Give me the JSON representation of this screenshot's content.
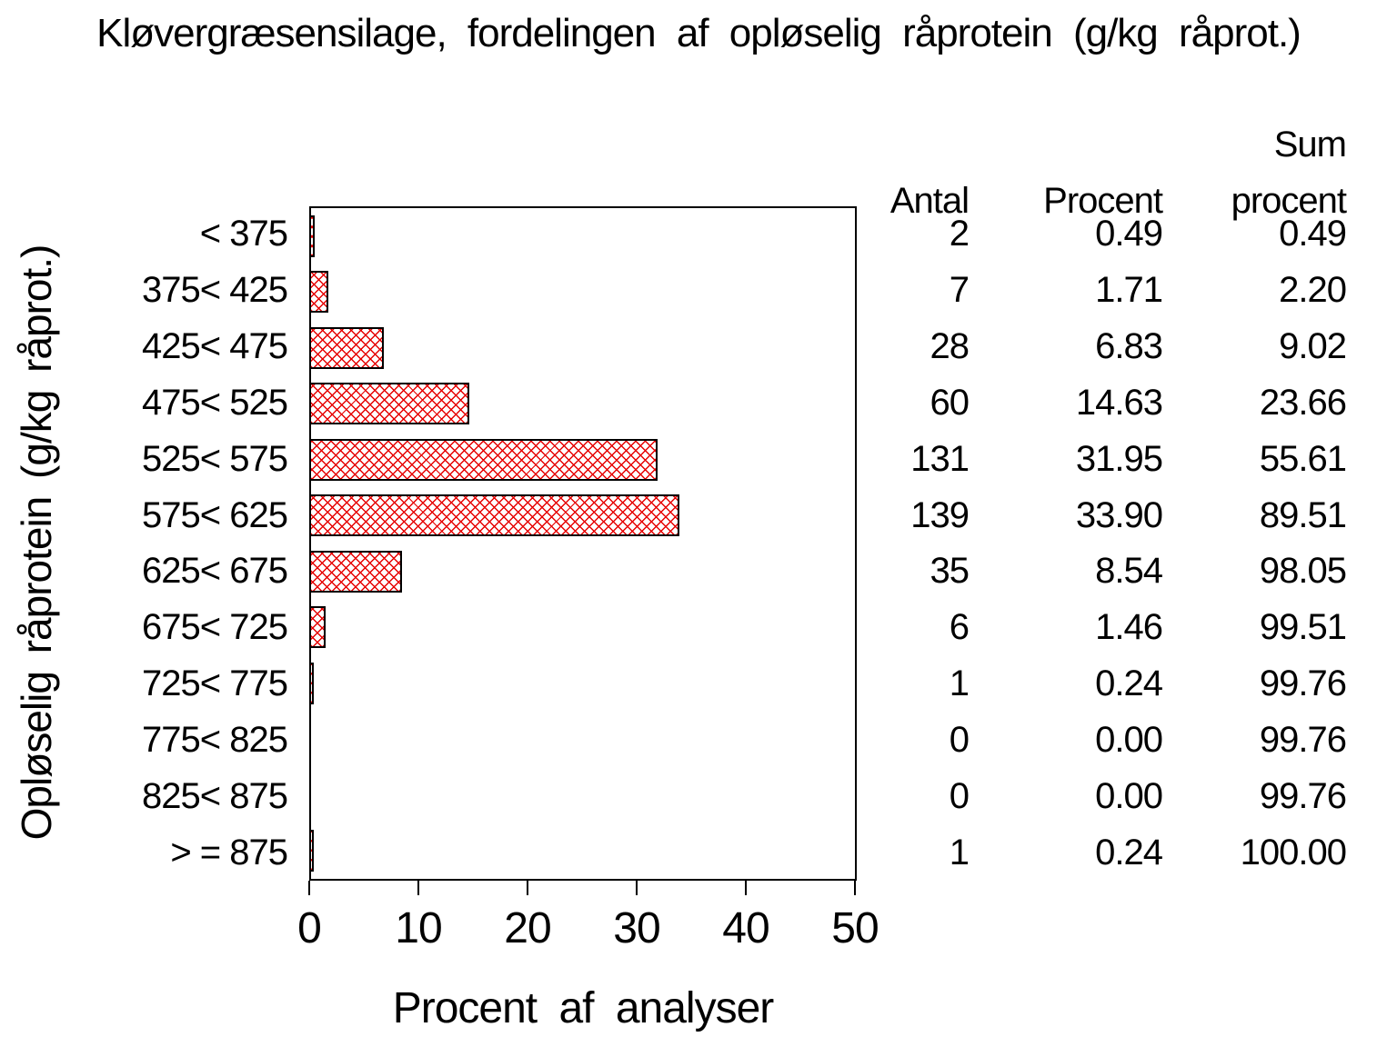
{
  "title": "Kløvergræsensilage, fordelingen af opløselig råprotein (g/kg råprot.)",
  "chart_data": {
    "type": "bar",
    "orientation": "horizontal",
    "title": "Kløvergræsensilage, fordelingen af opløselig råprotein (g/kg råprot.)",
    "xlabel": "Procent af analyser",
    "ylabel": "Opløselig råprotein (g/kg råprot.)",
    "xlim": [
      0,
      50
    ],
    "xticks": [
      "0",
      "10",
      "20",
      "30",
      "40",
      "50"
    ],
    "grid": "off",
    "bar_fill": "red crosshatch on white",
    "bar_color": "#e60000",
    "bar_border_color": "#000000",
    "categories": [
      "< 375",
      "375< 425",
      "425< 475",
      "475< 525",
      "525< 575",
      "575< 625",
      "625< 675",
      "675< 725",
      "725< 775",
      "775< 825",
      "825< 875",
      "> = 875"
    ],
    "values": [
      0.49,
      1.71,
      6.83,
      14.63,
      31.95,
      33.9,
      8.54,
      1.46,
      0.24,
      0.0,
      0.0,
      0.24
    ],
    "table": {
      "header": {
        "col1": "Antal",
        "col2": "Procent",
        "col3_line1": "Sum",
        "col3_line2": "procent"
      },
      "rows": [
        [
          "2",
          "0.49",
          "0.49"
        ],
        [
          "7",
          "1.71",
          "2.20"
        ],
        [
          "28",
          "6.83",
          "9.02"
        ],
        [
          "60",
          "14.63",
          "23.66"
        ],
        [
          "131",
          "31.95",
          "55.61"
        ],
        [
          "139",
          "33.90",
          "89.51"
        ],
        [
          "35",
          "8.54",
          "98.05"
        ],
        [
          "6",
          "1.46",
          "99.51"
        ],
        [
          "1",
          "0.24",
          "99.76"
        ],
        [
          "0",
          "0.00",
          "99.76"
        ],
        [
          "0",
          "0.00",
          "99.76"
        ],
        [
          "1",
          "0.24",
          "100.00"
        ]
      ]
    }
  }
}
